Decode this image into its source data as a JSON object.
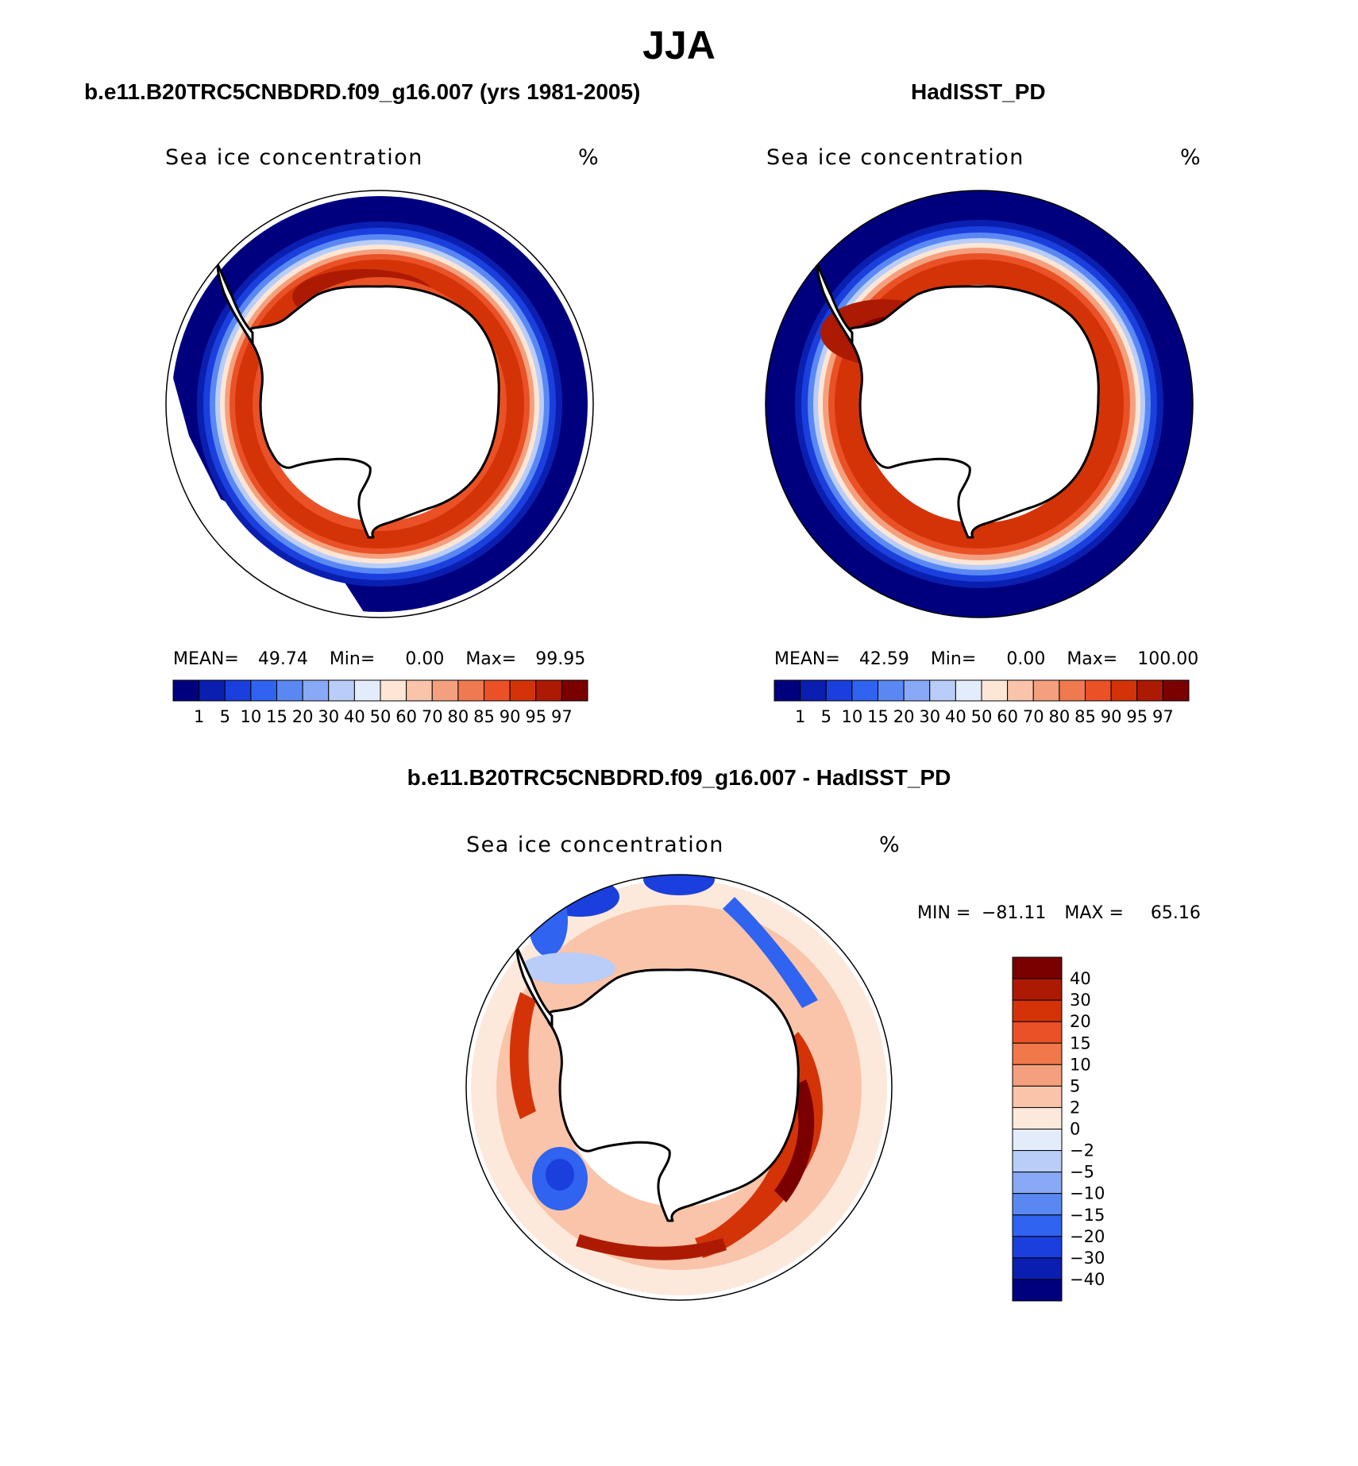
{
  "title": "JJA",
  "panels": [
    {
      "id": "model",
      "title": "b.e11.B20TRC5CNBDRD.f09_g16.007 (yrs 1981-2005)",
      "variable": "Sea ice concentration",
      "units": "%",
      "stats": {
        "mean_label": "MEAN=",
        "mean": "49.74",
        "min_label": "Min=",
        "min": "0.00",
        "max_label": "Max=",
        "max": "99.95"
      }
    },
    {
      "id": "obs",
      "title": "HadISST_PD",
      "variable": "Sea ice concentration",
      "units": "%",
      "stats": {
        "mean_label": "MEAN=",
        "mean": "42.59",
        "min_label": "Min=",
        "min": "0.00",
        "max_label": "Max=",
        "max": "100.00"
      }
    },
    {
      "id": "diff",
      "title": "b.e11.B20TRC5CNBDRD.f09_g16.007 - HadISST_PD",
      "variable": "Sea ice concentration",
      "units": "%",
      "stats": {
        "min_label": "MIN =",
        "min": "−81.11",
        "max_label": "MAX =",
        "max": "65.16"
      }
    }
  ],
  "colorbars": {
    "concentration": {
      "levels": [
        "1",
        "5",
        "10",
        "15",
        "20",
        "30",
        "40",
        "50",
        "60",
        "70",
        "80",
        "85",
        "90",
        "95",
        "97"
      ],
      "colors": [
        "#00007f",
        "#0a1fb0",
        "#1a3fdd",
        "#2f63f0",
        "#5a88f3",
        "#88a9f5",
        "#b9cdf8",
        "#e3ecfb",
        "#fde6d6",
        "#f9c4a9",
        "#f4a07e",
        "#ef7a4f",
        "#ea5126",
        "#d43308",
        "#ad1a04",
        "#7a0000"
      ]
    },
    "difference": {
      "levels": [
        "40",
        "30",
        "20",
        "15",
        "10",
        "5",
        "2",
        "0",
        "−2",
        "−5",
        "−10",
        "−15",
        "−20",
        "−30",
        "−40"
      ],
      "colors": [
        "#7a0000",
        "#ad1a04",
        "#d43308",
        "#ea5126",
        "#f0784b",
        "#f4a07e",
        "#f9c4a9",
        "#fde9dc",
        "#e3ecfb",
        "#b9cdf8",
        "#88a9f5",
        "#5a88f3",
        "#2f63f0",
        "#1a3fdd",
        "#0a1fb0",
        "#00007f"
      ]
    }
  },
  "chart_data": [
    {
      "type": "heatmap",
      "title": "b.e11.B20TRC5CNBDRD.f09_g16.007 (yrs 1981-2005)",
      "variable": "Sea ice concentration",
      "units": "%",
      "projection": "south polar stereographic",
      "mean": 49.74,
      "min": 0.0,
      "max": 99.95,
      "contour_levels": [
        1,
        5,
        10,
        15,
        20,
        30,
        40,
        50,
        60,
        70,
        80,
        85,
        90,
        95,
        97
      ]
    },
    {
      "type": "heatmap",
      "title": "HadISST_PD",
      "variable": "Sea ice concentration",
      "units": "%",
      "projection": "south polar stereographic",
      "mean": 42.59,
      "min": 0.0,
      "max": 100.0,
      "contour_levels": [
        1,
        5,
        10,
        15,
        20,
        30,
        40,
        50,
        60,
        70,
        80,
        85,
        90,
        95,
        97
      ]
    },
    {
      "type": "heatmap",
      "title": "b.e11.B20TRC5CNBDRD.f09_g16.007 - HadISST_PD",
      "variable": "Sea ice concentration",
      "units": "%",
      "projection": "south polar stereographic",
      "min": -81.11,
      "max": 65.16,
      "contour_levels": [
        -40,
        -30,
        -20,
        -15,
        -10,
        -5,
        -2,
        0,
        2,
        5,
        10,
        15,
        20,
        30,
        40
      ]
    }
  ]
}
